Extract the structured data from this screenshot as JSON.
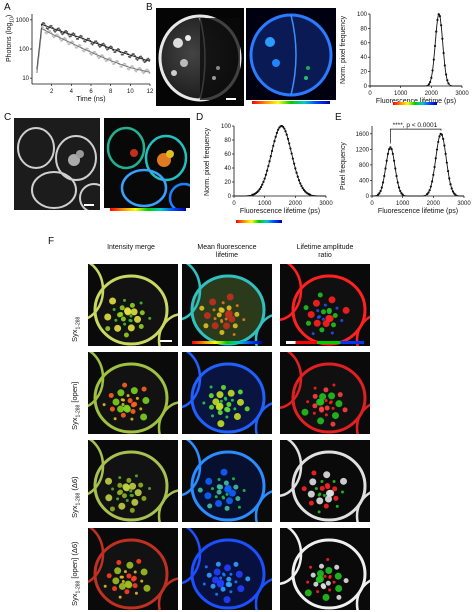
{
  "panels": {
    "A": "A",
    "B": "B",
    "C": "C",
    "D": "D",
    "E": "E",
    "F": "F"
  },
  "plotA": {
    "ylabel": "Photons (log",
    "ylabel_sub": "10",
    "ylabel_end": ")",
    "xlabel": "Time (ns)",
    "yticks": [
      "10",
      "100",
      "1000"
    ],
    "xticks": [
      "2",
      "4",
      "6",
      "8",
      "10",
      "12"
    ]
  },
  "plotB": {
    "ylabel": "Norm. pixel frequency",
    "xlabel": "Fluorescence lifetime (ps)",
    "yticks": [
      "0",
      "20",
      "40",
      "60",
      "80",
      "100"
    ],
    "xticks": [
      "0",
      "1000",
      "2000",
      "3000"
    ]
  },
  "plotD": {
    "ylabel": "Norm. pixel frequency",
    "xlabel": "Fluorescence lifetime (ps)",
    "yticks": [
      "0",
      "20",
      "40",
      "60",
      "80",
      "100"
    ],
    "xticks": [
      "0",
      "1000",
      "2000",
      "3000"
    ]
  },
  "plotE": {
    "ylabel": "Pixel frequency",
    "xlabel": "Fluorescence lifetime (ps)",
    "yticks": [
      "0",
      "400",
      "800",
      "1200",
      "1600"
    ],
    "xticks": [
      "0",
      "1000",
      "2000",
      "3000"
    ],
    "annotation": "****, p < 0.0001"
  },
  "panelF": {
    "col1": "Intensity merge",
    "col2_line1": "Mean fluorescence",
    "col2_line2": "lifetime",
    "col3_line1": "Lifetime amplitude",
    "col3_line2": "ratio",
    "rows": [
      {
        "base": "Syx",
        "sub": "1-288",
        "extra": ""
      },
      {
        "base": "Syx",
        "sub": "1-288",
        "extra": " [open]"
      },
      {
        "base": "Syx",
        "sub": "1-288",
        "extra": " (Δ6)"
      },
      {
        "base": "Syx",
        "sub": "1-288",
        "extra": " [open] (Δ6)"
      }
    ]
  },
  "chart_data": [
    {
      "type": "scatter",
      "panel": "A",
      "xlabel": "Time (ns)",
      "ylabel": "Photons (log10)",
      "xlim": [
        0,
        12
      ],
      "ylim_log10": [
        0.8,
        3.2
      ],
      "series": [
        {
          "color": "#555555",
          "x": [
            0.5,
            1,
            2,
            3,
            4,
            5,
            6,
            7,
            8,
            9,
            10,
            11,
            12
          ],
          "y": [
            20,
            700,
            520,
            400,
            310,
            240,
            180,
            140,
            105,
            80,
            62,
            48,
            38
          ]
        },
        {
          "color": "#bbbbbb",
          "x": [
            0.5,
            1,
            2,
            3,
            4,
            5,
            6,
            7,
            8,
            9,
            10,
            11,
            12
          ],
          "y": [
            15,
            500,
            330,
            230,
            160,
            110,
            78,
            55,
            40,
            30,
            23,
            19,
            16
          ]
        }
      ]
    },
    {
      "type": "line",
      "panel": "B",
      "xlabel": "Fluorescence lifetime (ps)",
      "ylabel": "Norm. pixel frequency",
      "xlim": [
        0,
        3000
      ],
      "ylim": [
        0,
        100
      ],
      "peak": 2250,
      "width_sd": 120
    },
    {
      "type": "line",
      "panel": "D",
      "xlabel": "Fluorescence lifetime (ps)",
      "ylabel": "Norm. pixel frequency",
      "xlim": [
        0,
        3000
      ],
      "ylim": [
        0,
        100
      ],
      "peak": 1550,
      "width_sd": 330
    },
    {
      "type": "line",
      "panel": "E",
      "xlabel": "Fluorescence lifetime (ps)",
      "ylabel": "Pixel frequency",
      "xlim": [
        0,
        3000
      ],
      "ylim": [
        0,
        1800
      ],
      "peaks": [
        {
          "center": 600,
          "height": 1250,
          "sd": 150
        },
        {
          "center": 2250,
          "height": 1600,
          "sd": 170
        }
      ]
    }
  ],
  "colors": {
    "lifetime_bar": [
      "#ff0000",
      "#ff8800",
      "#ffff00",
      "#00cc00",
      "#00cccc",
      "#0044ff",
      "#0000aa"
    ],
    "ratio_bar": [
      "#ffffff",
      "#ff0000",
      "#00cc00",
      "#0033ff"
    ]
  }
}
